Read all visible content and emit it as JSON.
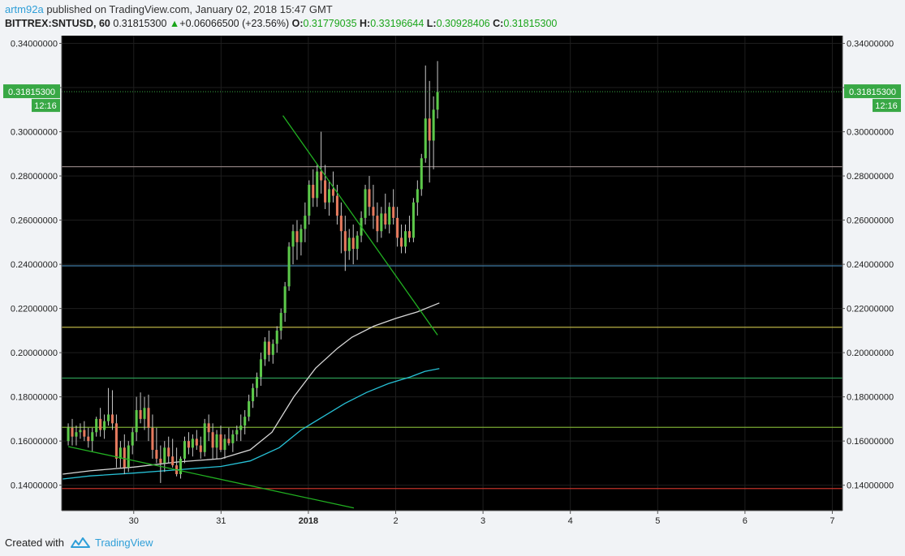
{
  "header": {
    "author": "artm92a",
    "published_text": "published on TradingView.com, January 02, 2018 15:47 GMT",
    "symbol": "BITTREX:SNTUSD, 60",
    "last_price": "0.31815300",
    "change_arrow": "▲",
    "change": "+0.06066500 (+23.56%)",
    "open_label": "O:",
    "open": "0.31779035",
    "high_label": "H:",
    "high": "0.33196644",
    "low_label": "L:",
    "low": "0.30928406",
    "close_label": "C:",
    "close": "0.31815300"
  },
  "footer": {
    "created_with": "Created with",
    "brand": "TradingView"
  },
  "colors": {
    "up": "#5cc84a",
    "down": "#e57a5e",
    "background": "#000000",
    "ma_white": "#d8d8d8",
    "ma_cyan": "#27c1d6",
    "trendline": "#21b021",
    "price_tag": "#38a845"
  },
  "chart_data": {
    "type": "candlestick",
    "y_ticks": [
      "0.34000000",
      "0.32000000",
      "0.30000000",
      "0.28000000",
      "0.26000000",
      "0.24000000",
      "0.22000000",
      "0.20000000",
      "0.18000000",
      "0.16000000",
      "0.14000000"
    ],
    "y_tick_values": [
      0.34,
      0.32,
      0.3,
      0.28,
      0.26,
      0.24,
      0.22,
      0.2,
      0.18,
      0.16,
      0.14
    ],
    "ylim": [
      0.1285,
      0.3435
    ],
    "x_ticks": [
      {
        "label": "30",
        "hour": 12,
        "bold": false
      },
      {
        "label": "31",
        "hour": 36,
        "bold": false
      },
      {
        "label": "2018",
        "hour": 60,
        "bold": true
      },
      {
        "label": "2",
        "hour": 84,
        "bold": false
      },
      {
        "label": "3",
        "hour": 108,
        "bold": false
      },
      {
        "label": "4",
        "hour": 132,
        "bold": false
      },
      {
        "label": "5",
        "hour": 156,
        "bold": false
      },
      {
        "label": "6",
        "hour": 180,
        "bold": false
      },
      {
        "label": "7",
        "hour": 204,
        "bold": false
      }
    ],
    "xlim_hours": [
      -7.8,
      206.8
    ],
    "price_tag": {
      "value": 0.318153,
      "label": "0.31815300",
      "countdown": "12:16"
    },
    "hlines": [
      {
        "value": 0.2842,
        "color": "#8a7c7c"
      },
      {
        "value": 0.2393,
        "color": "#3f79a2"
      },
      {
        "value": 0.2115,
        "color": "#b8b045"
      },
      {
        "value": 0.1885,
        "color": "#2c9a55"
      },
      {
        "value": 0.1662,
        "color": "#78a832"
      },
      {
        "value": 0.1385,
        "color": "#c0332a"
      }
    ],
    "trendlines": [
      {
        "x1_hour": 53.0,
        "y1": 0.3073,
        "x2_hour": 95.5,
        "y2": 0.208
      },
      {
        "x1_hour": -6.0,
        "y1": 0.1575,
        "x2_hour": 72.5,
        "y2": 0.1297
      }
    ],
    "ma_white": [
      [
        -7.5,
        0.145
      ],
      [
        0,
        0.1465
      ],
      [
        12,
        0.1482
      ],
      [
        24,
        0.1505
      ],
      [
        36,
        0.152
      ],
      [
        44,
        0.156
      ],
      [
        50,
        0.164
      ],
      [
        56,
        0.18
      ],
      [
        62,
        0.193
      ],
      [
        68,
        0.202
      ],
      [
        72,
        0.207
      ],
      [
        78,
        0.212
      ],
      [
        84,
        0.2155
      ],
      [
        90,
        0.2185
      ],
      [
        96,
        0.2225
      ]
    ],
    "ma_cyan": [
      [
        -7.5,
        0.1428
      ],
      [
        0,
        0.1442
      ],
      [
        12,
        0.1455
      ],
      [
        24,
        0.147
      ],
      [
        36,
        0.1485
      ],
      [
        44,
        0.151
      ],
      [
        52,
        0.157
      ],
      [
        58,
        0.165
      ],
      [
        64,
        0.171
      ],
      [
        70,
        0.177
      ],
      [
        76,
        0.182
      ],
      [
        82,
        0.186
      ],
      [
        88,
        0.189
      ],
      [
        92,
        0.1915
      ],
      [
        96,
        0.1928
      ]
    ],
    "candles_ohlc": [
      [
        0.16,
        0.168,
        0.158,
        0.166
      ],
      [
        0.166,
        0.17,
        0.158,
        0.162
      ],
      [
        0.162,
        0.167,
        0.158,
        0.164
      ],
      [
        0.164,
        0.168,
        0.161,
        0.165
      ],
      [
        0.165,
        0.169,
        0.16,
        0.162
      ],
      [
        0.162,
        0.166,
        0.157,
        0.16
      ],
      [
        0.16,
        0.166,
        0.155,
        0.164
      ],
      [
        0.164,
        0.171,
        0.162,
        0.17
      ],
      [
        0.17,
        0.175,
        0.162,
        0.165
      ],
      [
        0.165,
        0.172,
        0.161,
        0.169
      ],
      [
        0.169,
        0.184,
        0.167,
        0.172
      ],
      [
        0.172,
        0.183,
        0.165,
        0.168
      ],
      [
        0.168,
        0.172,
        0.148,
        0.152
      ],
      [
        0.152,
        0.16,
        0.148,
        0.157
      ],
      [
        0.157,
        0.163,
        0.145,
        0.148
      ],
      [
        0.148,
        0.16,
        0.146,
        0.158
      ],
      [
        0.158,
        0.166,
        0.154,
        0.164
      ],
      [
        0.164,
        0.18,
        0.16,
        0.174
      ],
      [
        0.174,
        0.182,
        0.168,
        0.17
      ],
      [
        0.17,
        0.18,
        0.165,
        0.175
      ],
      [
        0.175,
        0.181,
        0.16,
        0.166
      ],
      [
        0.166,
        0.172,
        0.152,
        0.156
      ],
      [
        0.156,
        0.166,
        0.15,
        0.152
      ],
      [
        0.152,
        0.158,
        0.141,
        0.15
      ],
      [
        0.15,
        0.16,
        0.146,
        0.157
      ],
      [
        0.157,
        0.162,
        0.15,
        0.153
      ],
      [
        0.153,
        0.161,
        0.148,
        0.149
      ],
      [
        0.149,
        0.157,
        0.144,
        0.145
      ],
      [
        0.145,
        0.153,
        0.143,
        0.152
      ],
      [
        0.152,
        0.162,
        0.15,
        0.16
      ],
      [
        0.16,
        0.164,
        0.154,
        0.157
      ],
      [
        0.157,
        0.163,
        0.153,
        0.161
      ],
      [
        0.161,
        0.165,
        0.156,
        0.158
      ],
      [
        0.158,
        0.162,
        0.152,
        0.155
      ],
      [
        0.155,
        0.17,
        0.153,
        0.168
      ],
      [
        0.168,
        0.172,
        0.16,
        0.164
      ],
      [
        0.164,
        0.168,
        0.152,
        0.157
      ],
      [
        0.157,
        0.165,
        0.152,
        0.163
      ],
      [
        0.163,
        0.167,
        0.155,
        0.156
      ],
      [
        0.156,
        0.163,
        0.152,
        0.161
      ],
      [
        0.161,
        0.166,
        0.158,
        0.159
      ],
      [
        0.159,
        0.165,
        0.155,
        0.163
      ],
      [
        0.163,
        0.167,
        0.16,
        0.165
      ],
      [
        0.165,
        0.172,
        0.16,
        0.167
      ],
      [
        0.167,
        0.174,
        0.163,
        0.171
      ],
      [
        0.171,
        0.181,
        0.169,
        0.178
      ],
      [
        0.178,
        0.186,
        0.175,
        0.184
      ],
      [
        0.184,
        0.191,
        0.18,
        0.189
      ],
      [
        0.189,
        0.2,
        0.185,
        0.197
      ],
      [
        0.197,
        0.207,
        0.194,
        0.205
      ],
      [
        0.205,
        0.21,
        0.196,
        0.199
      ],
      [
        0.199,
        0.206,
        0.195,
        0.204
      ],
      [
        0.204,
        0.212,
        0.2,
        0.21
      ],
      [
        0.21,
        0.22,
        0.206,
        0.218
      ],
      [
        0.218,
        0.232,
        0.214,
        0.23
      ],
      [
        0.23,
        0.25,
        0.228,
        0.248
      ],
      [
        0.248,
        0.258,
        0.24,
        0.255
      ],
      [
        0.255,
        0.26,
        0.242,
        0.25
      ],
      [
        0.25,
        0.258,
        0.244,
        0.256
      ],
      [
        0.256,
        0.268,
        0.25,
        0.262
      ],
      [
        0.262,
        0.278,
        0.258,
        0.276
      ],
      [
        0.276,
        0.283,
        0.266,
        0.27
      ],
      [
        0.27,
        0.285,
        0.266,
        0.282
      ],
      [
        0.282,
        0.3,
        0.272,
        0.278
      ],
      [
        0.278,
        0.285,
        0.265,
        0.268
      ],
      [
        0.268,
        0.278,
        0.262,
        0.274
      ],
      [
        0.274,
        0.282,
        0.268,
        0.271
      ],
      [
        0.271,
        0.276,
        0.258,
        0.262
      ],
      [
        0.262,
        0.268,
        0.245,
        0.255
      ],
      [
        0.255,
        0.262,
        0.237,
        0.246
      ],
      [
        0.246,
        0.256,
        0.242,
        0.252
      ],
      [
        0.252,
        0.258,
        0.24,
        0.247
      ],
      [
        0.247,
        0.255,
        0.242,
        0.253
      ],
      [
        0.253,
        0.264,
        0.25,
        0.261
      ],
      [
        0.261,
        0.276,
        0.258,
        0.274
      ],
      [
        0.274,
        0.28,
        0.262,
        0.266
      ],
      [
        0.266,
        0.276,
        0.256,
        0.262
      ],
      [
        0.262,
        0.268,
        0.25,
        0.255
      ],
      [
        0.255,
        0.266,
        0.252,
        0.263
      ],
      [
        0.263,
        0.272,
        0.256,
        0.258
      ],
      [
        0.258,
        0.268,
        0.254,
        0.266
      ],
      [
        0.266,
        0.274,
        0.258,
        0.261
      ],
      [
        0.261,
        0.266,
        0.248,
        0.252
      ],
      [
        0.252,
        0.258,
        0.245,
        0.248
      ],
      [
        0.248,
        0.258,
        0.245,
        0.255
      ],
      [
        0.255,
        0.262,
        0.25,
        0.252
      ],
      [
        0.252,
        0.27,
        0.25,
        0.268
      ],
      [
        0.268,
        0.278,
        0.262,
        0.274
      ],
      [
        0.274,
        0.29,
        0.271,
        0.288
      ],
      [
        0.288,
        0.33,
        0.286,
        0.306
      ],
      [
        0.306,
        0.323,
        0.277,
        0.296
      ],
      [
        0.296,
        0.316,
        0.283,
        0.31
      ],
      [
        0.31,
        0.332,
        0.306,
        0.318
      ]
    ]
  }
}
